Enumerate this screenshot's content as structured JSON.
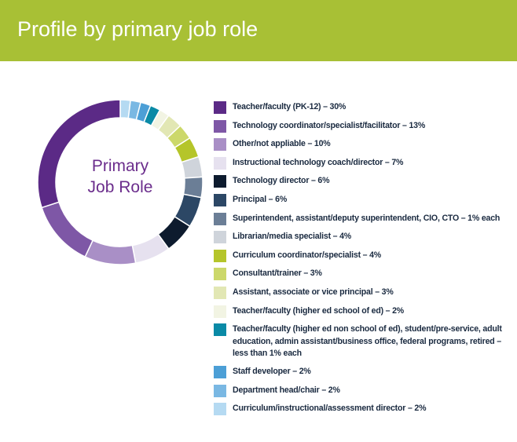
{
  "chart_data": {
    "type": "donut",
    "title": "Profile by primary job role",
    "center_label": [
      "Primary",
      "Job Role"
    ],
    "categories": [
      "Teacher/faculty (PK-12) – 30%",
      "Technology coordinator/specialist/facilitator – 13%",
      "Other/not appliable – 10%",
      "Instructional technology coach/director – 7%",
      "Technology director – 6%",
      "Principal – 6%",
      "Superintendent, assistant/deputy superintendent, CIO, CTO – 1% each",
      "Librarian/media specialist – 4%",
      "Curriculum coordinator/specialist – 4%",
      "Consultant/trainer – 3%",
      "Assistant, associate or vice principal – 3%",
      "Teacher/faculty (higher ed school of ed) – 2%",
      "Teacher/faculty (higher ed non school of ed), student/pre-service, adult education, admin assistant/business office, federal programs, retired – less than 1% each",
      "Staff developer – 2%",
      "Department head/chair – 2%",
      "Curriculum/instructional/assessment director – 2%"
    ],
    "values": [
      30,
      13,
      10,
      7,
      6,
      6,
      4,
      4,
      4,
      3,
      3,
      2,
      2,
      2,
      2,
      2
    ],
    "colors": [
      "#5b2a86",
      "#7e57a6",
      "#a98fc6",
      "#e6e1ef",
      "#0d1b2e",
      "#2c4765",
      "#6b7e96",
      "#cfd4db",
      "#b5c52a",
      "#ccd86a",
      "#e2e7b4",
      "#f2f4e3",
      "#0a8aa6",
      "#4c9fd6",
      "#7ab8e3",
      "#b5daf2"
    ]
  }
}
